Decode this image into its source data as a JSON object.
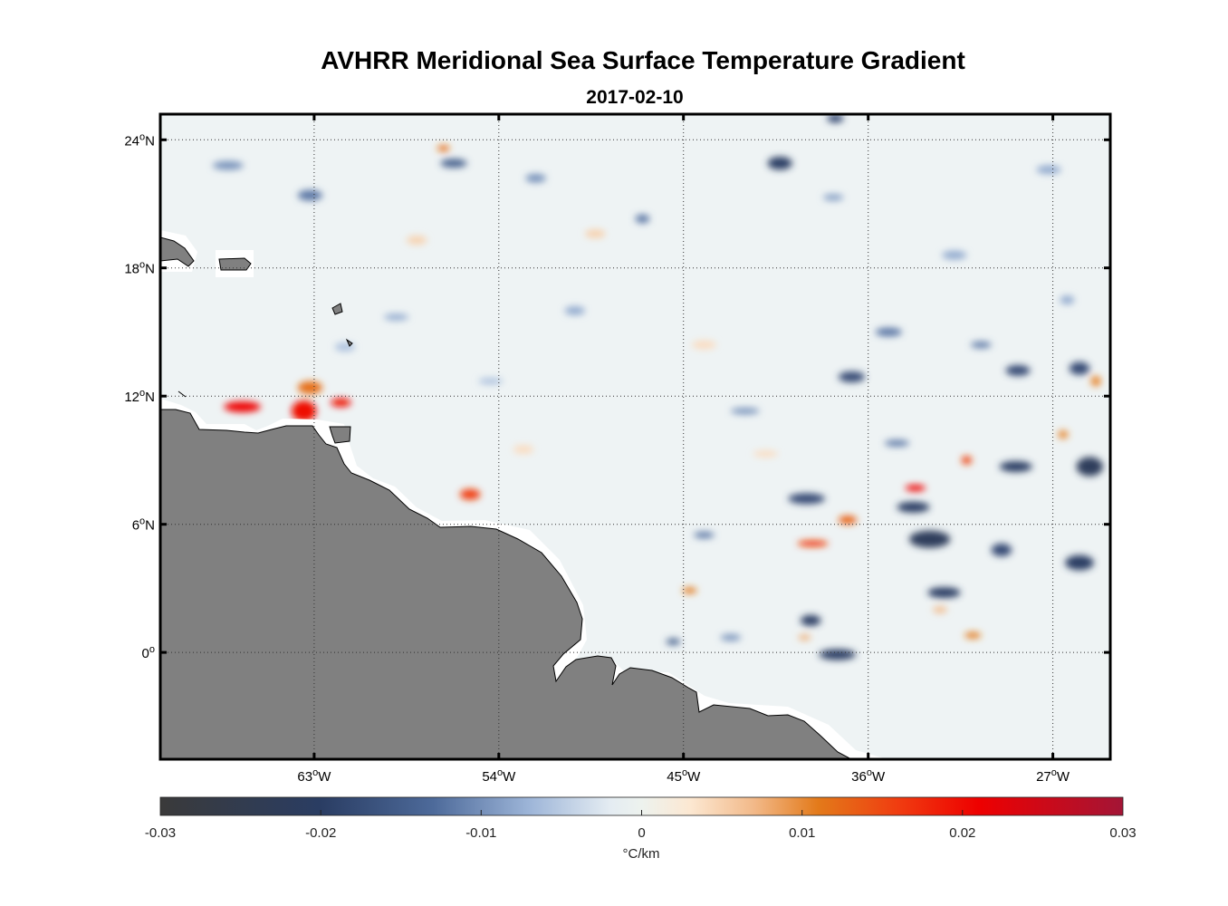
{
  "title": "AVHRR Meridional Sea Surface Temperature Gradient",
  "subtitle": "2017-02-10",
  "colors": {
    "land": "#808080",
    "coast": "#000000",
    "ocean_base": "#eef3f4",
    "frame": "#000000"
  },
  "chart_data": {
    "type": "heatmap",
    "title": "AVHRR Meridional Sea Surface Temperature Gradient",
    "subtitle": "2017-02-10",
    "x_axis": {
      "range": [
        -70.5,
        -24.2
      ],
      "ticks": [
        -63,
        -54,
        -45,
        -36,
        -27
      ],
      "tick_labels": [
        {
          "deg": "63",
          "hem": "W"
        },
        {
          "deg": "54",
          "hem": "W"
        },
        {
          "deg": "45",
          "hem": "W"
        },
        {
          "deg": "36",
          "hem": "W"
        },
        {
          "deg": "27",
          "hem": "W"
        }
      ]
    },
    "y_axis": {
      "range": [
        -5,
        25.2
      ],
      "ticks": [
        24,
        18,
        12,
        6,
        0
      ],
      "tick_labels": [
        {
          "deg": "24",
          "hem": "N"
        },
        {
          "deg": "18",
          "hem": "N"
        },
        {
          "deg": "12",
          "hem": "N"
        },
        {
          "deg": "6",
          "hem": "N"
        },
        {
          "deg": "0",
          "hem": ""
        }
      ]
    },
    "grid": "dotted",
    "colorbar": {
      "min": -0.03,
      "max": 0.03,
      "ticks": [
        -0.03,
        -0.02,
        -0.01,
        0,
        0.01,
        0.02,
        0.03
      ],
      "tick_labels": [
        "-0.03",
        "-0.02",
        "-0.01",
        "0",
        "0.01",
        "0.02",
        "0.03"
      ],
      "label": "°C/km",
      "stops": [
        {
          "v": -0.03,
          "color": "#3a3a3a"
        },
        {
          "v": -0.02,
          "color": "#2a3d63"
        },
        {
          "v": -0.013,
          "color": "#4d6a9a"
        },
        {
          "v": -0.007,
          "color": "#9db5d8"
        },
        {
          "v": -0.002,
          "color": "#e4ecf2"
        },
        {
          "v": 0,
          "color": "#edf2ee"
        },
        {
          "v": 0.003,
          "color": "#fce8d2"
        },
        {
          "v": 0.007,
          "color": "#f2b989"
        },
        {
          "v": 0.011,
          "color": "#e37a1a"
        },
        {
          "v": 0.016,
          "color": "#f03c10"
        },
        {
          "v": 0.021,
          "color": "#ee0000"
        },
        {
          "v": 0.03,
          "color": "#a31536"
        }
      ]
    },
    "anomalies": [
      {
        "lon": -66.5,
        "lat": 11.5,
        "w": 1.8,
        "h": 0.5,
        "value": 0.021
      },
      {
        "lon": -63.5,
        "lat": 11.3,
        "w": 1.2,
        "h": 1.0,
        "value": 0.02
      },
      {
        "lon": -63.2,
        "lat": 12.4,
        "w": 1.2,
        "h": 0.6,
        "value": 0.012
      },
      {
        "lon": -61.7,
        "lat": 11.7,
        "w": 1.0,
        "h": 0.4,
        "value": 0.02
      },
      {
        "lon": -55.4,
        "lat": 7.4,
        "w": 1.0,
        "h": 0.5,
        "value": 0.016
      },
      {
        "lon": -37.0,
        "lat": 6.2,
        "w": 0.9,
        "h": 0.4,
        "value": 0.013
      },
      {
        "lon": -38.7,
        "lat": 5.1,
        "w": 1.5,
        "h": 0.3,
        "value": 0.016
      },
      {
        "lon": -33.7,
        "lat": 7.7,
        "w": 1.0,
        "h": 0.3,
        "value": 0.021
      },
      {
        "lon": -31.2,
        "lat": 9.0,
        "w": 0.5,
        "h": 0.4,
        "value": 0.015
      },
      {
        "lon": -26.5,
        "lat": 10.2,
        "w": 0.5,
        "h": 0.4,
        "value": 0.01
      },
      {
        "lon": -24.9,
        "lat": 12.7,
        "w": 0.5,
        "h": 0.5,
        "value": 0.01
      },
      {
        "lon": -44.7,
        "lat": 2.9,
        "w": 0.7,
        "h": 0.3,
        "value": 0.011
      },
      {
        "lon": -30.9,
        "lat": 0.8,
        "w": 0.8,
        "h": 0.3,
        "value": 0.011
      },
      {
        "lon": -39.1,
        "lat": 0.7,
        "w": 0.6,
        "h": 0.25,
        "value": 0.008
      },
      {
        "lon": -32.5,
        "lat": 2.0,
        "w": 0.7,
        "h": 0.3,
        "value": 0.007
      },
      {
        "lon": -56.7,
        "lat": 23.6,
        "w": 0.6,
        "h": 0.3,
        "value": 0.012
      },
      {
        "lon": -39.0,
        "lat": 7.2,
        "w": 1.8,
        "h": 0.5,
        "value": -0.018
      },
      {
        "lon": -33.8,
        "lat": 6.8,
        "w": 1.6,
        "h": 0.5,
        "value": -0.02
      },
      {
        "lon": -33.0,
        "lat": 5.3,
        "w": 2.0,
        "h": 0.8,
        "value": -0.022
      },
      {
        "lon": -38.8,
        "lat": 1.5,
        "w": 1.0,
        "h": 0.5,
        "value": -0.02
      },
      {
        "lon": -37.5,
        "lat": -0.1,
        "w": 1.8,
        "h": 0.5,
        "value": -0.02
      },
      {
        "lon": -32.3,
        "lat": 2.8,
        "w": 1.6,
        "h": 0.5,
        "value": -0.02
      },
      {
        "lon": -29.5,
        "lat": 4.8,
        "w": 1.0,
        "h": 0.6,
        "value": -0.018
      },
      {
        "lon": -28.8,
        "lat": 8.7,
        "w": 1.6,
        "h": 0.5,
        "value": -0.02
      },
      {
        "lon": -25.2,
        "lat": 8.7,
        "w": 1.3,
        "h": 0.9,
        "value": -0.022
      },
      {
        "lon": -25.7,
        "lat": 4.2,
        "w": 1.4,
        "h": 0.7,
        "value": -0.02
      },
      {
        "lon": -28.7,
        "lat": 13.2,
        "w": 1.2,
        "h": 0.5,
        "value": -0.018
      },
      {
        "lon": -25.7,
        "lat": 13.3,
        "w": 1.0,
        "h": 0.6,
        "value": -0.018
      },
      {
        "lon": -36.8,
        "lat": 12.9,
        "w": 1.3,
        "h": 0.5,
        "value": -0.018
      },
      {
        "lon": -40.3,
        "lat": 22.9,
        "w": 1.2,
        "h": 0.6,
        "value": -0.02
      },
      {
        "lon": -37.6,
        "lat": 25.0,
        "w": 0.8,
        "h": 0.4,
        "value": -0.018
      },
      {
        "lon": -56.2,
        "lat": 22.9,
        "w": 1.3,
        "h": 0.4,
        "value": -0.015
      },
      {
        "lon": -67.2,
        "lat": 22.8,
        "w": 1.5,
        "h": 0.4,
        "value": -0.01
      },
      {
        "lon": -63.2,
        "lat": 21.4,
        "w": 1.2,
        "h": 0.5,
        "value": -0.012
      },
      {
        "lon": -47.0,
        "lat": 20.3,
        "w": 0.7,
        "h": 0.4,
        "value": -0.012
      },
      {
        "lon": -37.7,
        "lat": 21.3,
        "w": 1.0,
        "h": 0.3,
        "value": -0.009
      },
      {
        "lon": -52.2,
        "lat": 22.2,
        "w": 1.0,
        "h": 0.4,
        "value": -0.01
      },
      {
        "lon": -44.0,
        "lat": 5.5,
        "w": 1.0,
        "h": 0.3,
        "value": -0.012
      },
      {
        "lon": -45.5,
        "lat": 0.5,
        "w": 0.7,
        "h": 0.3,
        "value": -0.015
      },
      {
        "lon": -42.7,
        "lat": 0.7,
        "w": 1.0,
        "h": 0.3,
        "value": -0.01
      },
      {
        "lon": -42.0,
        "lat": 11.3,
        "w": 1.4,
        "h": 0.3,
        "value": -0.01
      },
      {
        "lon": -35.0,
        "lat": 15.0,
        "w": 1.3,
        "h": 0.4,
        "value": -0.012
      },
      {
        "lon": -30.5,
        "lat": 14.4,
        "w": 1.0,
        "h": 0.3,
        "value": -0.012
      },
      {
        "lon": -34.6,
        "lat": 9.8,
        "w": 1.2,
        "h": 0.3,
        "value": -0.012
      },
      {
        "lon": -59.0,
        "lat": 15.7,
        "w": 1.2,
        "h": 0.3,
        "value": -0.008
      },
      {
        "lon": -50.3,
        "lat": 16.0,
        "w": 1.0,
        "h": 0.4,
        "value": -0.008
      },
      {
        "lon": -49.3,
        "lat": 19.6,
        "w": 1.0,
        "h": 0.4,
        "value": 0.005
      },
      {
        "lon": -58.0,
        "lat": 19.3,
        "w": 1.0,
        "h": 0.4,
        "value": 0.005
      },
      {
        "lon": -44.0,
        "lat": 14.4,
        "w": 1.2,
        "h": 0.4,
        "value": 0.004
      },
      {
        "lon": -61.5,
        "lat": 14.3,
        "w": 1.0,
        "h": 0.4,
        "value": -0.006
      },
      {
        "lon": -52.8,
        "lat": 9.5,
        "w": 1.0,
        "h": 0.4,
        "value": 0.004
      },
      {
        "lon": -54.4,
        "lat": 12.7,
        "w": 1.2,
        "h": 0.3,
        "value": -0.006
      },
      {
        "lon": -27.2,
        "lat": 22.6,
        "w": 1.2,
        "h": 0.4,
        "value": -0.008
      },
      {
        "lon": -31.8,
        "lat": 18.6,
        "w": 1.2,
        "h": 0.4,
        "value": -0.008
      },
      {
        "lon": -26.3,
        "lat": 16.5,
        "w": 0.7,
        "h": 0.4,
        "value": -0.008
      },
      {
        "lon": -41.0,
        "lat": 9.3,
        "w": 1.2,
        "h": 0.3,
        "value": 0.004
      }
    ]
  }
}
